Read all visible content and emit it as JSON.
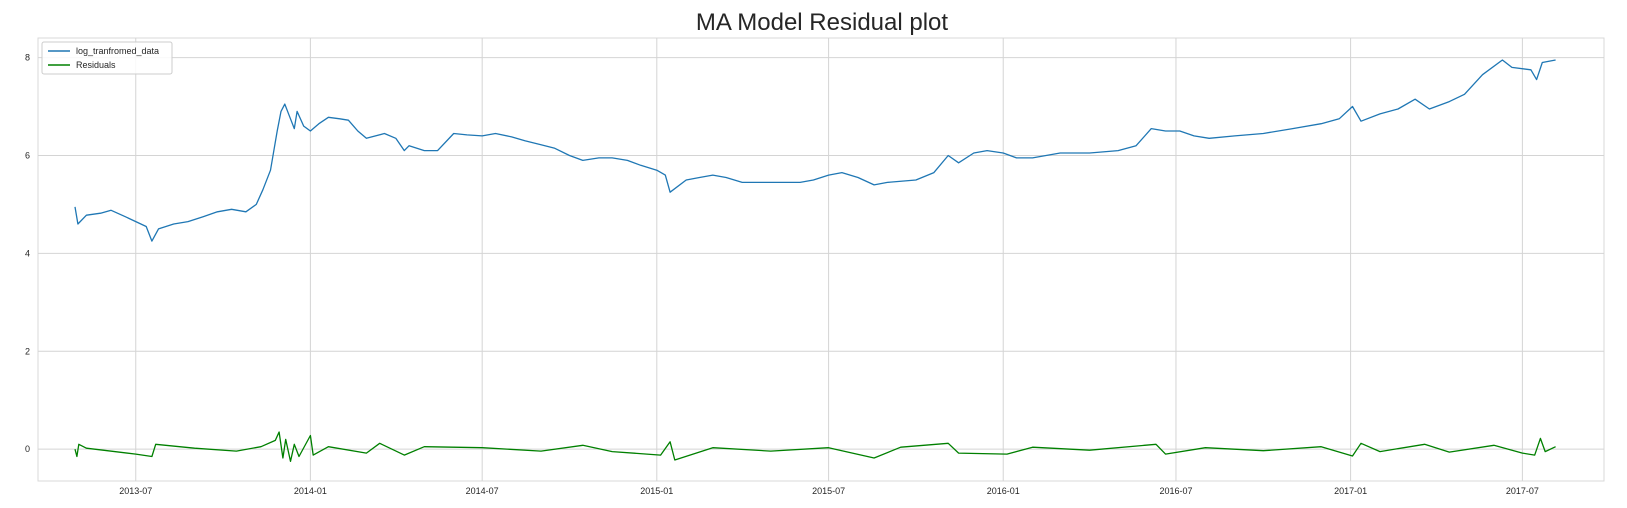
{
  "chart_data": {
    "type": "line",
    "title": "MA Model Residual plot",
    "xlabel": "",
    "ylabel": "",
    "x_range": [
      "2013-03-20",
      "2017-09-25"
    ],
    "ylim": [
      -0.65,
      8.4
    ],
    "x_ticks": [
      "2013-07",
      "2014-01",
      "2014-07",
      "2015-01",
      "2015-07",
      "2016-01",
      "2016-07",
      "2017-01",
      "2017-07"
    ],
    "y_ticks": [
      0,
      2,
      4,
      6,
      8
    ],
    "grid": true,
    "legend_position": "top-left",
    "series": [
      {
        "name": "log_tranfromed_data",
        "color": "#1f77b4",
        "points": [
          [
            "2013-04-28",
            4.95
          ],
          [
            "2013-05-01",
            4.6
          ],
          [
            "2013-05-10",
            4.78
          ],
          [
            "2013-05-25",
            4.82
          ],
          [
            "2013-06-05",
            4.88
          ],
          [
            "2013-06-20",
            4.75
          ],
          [
            "2013-07-01",
            4.65
          ],
          [
            "2013-07-12",
            4.55
          ],
          [
            "2013-07-18",
            4.25
          ],
          [
            "2013-07-25",
            4.5
          ],
          [
            "2013-08-10",
            4.6
          ],
          [
            "2013-08-25",
            4.65
          ],
          [
            "2013-09-10",
            4.75
          ],
          [
            "2013-09-25",
            4.85
          ],
          [
            "2013-10-10",
            4.9
          ],
          [
            "2013-10-25",
            4.85
          ],
          [
            "2013-11-05",
            5.0
          ],
          [
            "2013-11-12",
            5.3
          ],
          [
            "2013-11-20",
            5.7
          ],
          [
            "2013-11-27",
            6.5
          ],
          [
            "2013-12-01",
            6.9
          ],
          [
            "2013-12-05",
            7.05
          ],
          [
            "2013-12-10",
            6.8
          ],
          [
            "2013-12-15",
            6.55
          ],
          [
            "2013-12-18",
            6.9
          ],
          [
            "2013-12-25",
            6.6
          ],
          [
            "2014-01-01",
            6.5
          ],
          [
            "2014-01-10",
            6.65
          ],
          [
            "2014-01-20",
            6.78
          ],
          [
            "2014-02-01",
            6.75
          ],
          [
            "2014-02-10",
            6.72
          ],
          [
            "2014-02-20",
            6.5
          ],
          [
            "2014-03-01",
            6.35
          ],
          [
            "2014-03-20",
            6.45
          ],
          [
            "2014-04-01",
            6.35
          ],
          [
            "2014-04-10",
            6.1
          ],
          [
            "2014-04-15",
            6.2
          ],
          [
            "2014-05-01",
            6.1
          ],
          [
            "2014-05-15",
            6.1
          ],
          [
            "2014-06-01",
            6.45
          ],
          [
            "2014-06-15",
            6.42
          ],
          [
            "2014-07-01",
            6.4
          ],
          [
            "2014-07-15",
            6.45
          ],
          [
            "2014-08-01",
            6.38
          ],
          [
            "2014-08-15",
            6.3
          ],
          [
            "2014-09-01",
            6.22
          ],
          [
            "2014-09-15",
            6.15
          ],
          [
            "2014-10-01",
            6.0
          ],
          [
            "2014-10-15",
            5.9
          ],
          [
            "2014-11-01",
            5.95
          ],
          [
            "2014-11-15",
            5.95
          ],
          [
            "2014-12-01",
            5.9
          ],
          [
            "2014-12-15",
            5.8
          ],
          [
            "2015-01-01",
            5.7
          ],
          [
            "2015-01-10",
            5.6
          ],
          [
            "2015-01-15",
            5.25
          ],
          [
            "2015-02-01",
            5.5
          ],
          [
            "2015-02-15",
            5.55
          ],
          [
            "2015-03-01",
            5.6
          ],
          [
            "2015-03-15",
            5.55
          ],
          [
            "2015-04-01",
            5.45
          ],
          [
            "2015-05-01",
            5.45
          ],
          [
            "2015-06-01",
            5.45
          ],
          [
            "2015-06-15",
            5.5
          ],
          [
            "2015-07-01",
            5.6
          ],
          [
            "2015-07-15",
            5.65
          ],
          [
            "2015-08-01",
            5.55
          ],
          [
            "2015-08-18",
            5.4
          ],
          [
            "2015-09-01",
            5.45
          ],
          [
            "2015-10-01",
            5.5
          ],
          [
            "2015-10-20",
            5.65
          ],
          [
            "2015-11-04",
            6.0
          ],
          [
            "2015-11-15",
            5.85
          ],
          [
            "2015-12-01",
            6.05
          ],
          [
            "2015-12-15",
            6.1
          ],
          [
            "2016-01-01",
            6.05
          ],
          [
            "2016-01-15",
            5.95
          ],
          [
            "2016-02-01",
            5.95
          ],
          [
            "2016-03-01",
            6.05
          ],
          [
            "2016-04-01",
            6.05
          ],
          [
            "2016-05-01",
            6.1
          ],
          [
            "2016-05-20",
            6.2
          ],
          [
            "2016-06-05",
            6.55
          ],
          [
            "2016-06-20",
            6.5
          ],
          [
            "2016-07-05",
            6.5
          ],
          [
            "2016-07-20",
            6.4
          ],
          [
            "2016-08-05",
            6.35
          ],
          [
            "2016-09-01",
            6.4
          ],
          [
            "2016-10-01",
            6.45
          ],
          [
            "2016-11-01",
            6.55
          ],
          [
            "2016-12-01",
            6.65
          ],
          [
            "2016-12-20",
            6.75
          ],
          [
            "2017-01-03",
            7.0
          ],
          [
            "2017-01-12",
            6.7
          ],
          [
            "2017-02-01",
            6.85
          ],
          [
            "2017-02-20",
            6.95
          ],
          [
            "2017-03-10",
            7.15
          ],
          [
            "2017-03-25",
            6.95
          ],
          [
            "2017-04-15",
            7.1
          ],
          [
            "2017-05-01",
            7.25
          ],
          [
            "2017-05-20",
            7.65
          ],
          [
            "2017-06-10",
            7.95
          ],
          [
            "2017-06-20",
            7.8
          ],
          [
            "2017-07-10",
            7.75
          ],
          [
            "2017-07-16",
            7.55
          ],
          [
            "2017-07-22",
            7.9
          ],
          [
            "2017-08-05",
            7.95
          ]
        ]
      },
      {
        "name": "Residuals",
        "color": "#008000",
        "points": [
          [
            "2013-04-28",
            0.0
          ],
          [
            "2013-04-30",
            -0.15
          ],
          [
            "2013-05-02",
            0.1
          ],
          [
            "2013-05-10",
            0.02
          ],
          [
            "2013-06-01",
            -0.03
          ],
          [
            "2013-07-01",
            -0.1
          ],
          [
            "2013-07-18",
            -0.15
          ],
          [
            "2013-07-22",
            0.1
          ],
          [
            "2013-09-01",
            0.02
          ],
          [
            "2013-10-15",
            -0.04
          ],
          [
            "2013-11-10",
            0.05
          ],
          [
            "2013-11-25",
            0.18
          ],
          [
            "2013-11-29",
            0.35
          ],
          [
            "2013-12-03",
            -0.18
          ],
          [
            "2013-12-06",
            0.2
          ],
          [
            "2013-12-11",
            -0.25
          ],
          [
            "2013-12-15",
            0.1
          ],
          [
            "2013-12-20",
            -0.15
          ],
          [
            "2014-01-01",
            0.28
          ],
          [
            "2014-01-04",
            -0.12
          ],
          [
            "2014-01-20",
            0.05
          ],
          [
            "2014-03-01",
            -0.08
          ],
          [
            "2014-03-15",
            0.12
          ],
          [
            "2014-04-10",
            -0.12
          ],
          [
            "2014-05-01",
            0.05
          ],
          [
            "2014-07-01",
            0.03
          ],
          [
            "2014-09-01",
            -0.04
          ],
          [
            "2014-10-15",
            0.08
          ],
          [
            "2014-11-15",
            -0.05
          ],
          [
            "2015-01-05",
            -0.12
          ],
          [
            "2015-01-15",
            0.15
          ],
          [
            "2015-01-20",
            -0.22
          ],
          [
            "2015-03-01",
            0.03
          ],
          [
            "2015-05-01",
            -0.04
          ],
          [
            "2015-07-01",
            0.03
          ],
          [
            "2015-08-18",
            -0.18
          ],
          [
            "2015-09-15",
            0.04
          ],
          [
            "2015-11-04",
            0.12
          ],
          [
            "2015-11-15",
            -0.08
          ],
          [
            "2016-01-05",
            -0.1
          ],
          [
            "2016-02-01",
            0.04
          ],
          [
            "2016-04-01",
            -0.02
          ],
          [
            "2016-06-10",
            0.1
          ],
          [
            "2016-06-20",
            -0.1
          ],
          [
            "2016-08-01",
            0.03
          ],
          [
            "2016-10-01",
            -0.03
          ],
          [
            "2016-12-01",
            0.05
          ],
          [
            "2017-01-03",
            -0.14
          ],
          [
            "2017-01-12",
            0.12
          ],
          [
            "2017-02-01",
            -0.05
          ],
          [
            "2017-03-20",
            0.1
          ],
          [
            "2017-04-15",
            -0.06
          ],
          [
            "2017-06-01",
            0.08
          ],
          [
            "2017-07-01",
            -0.08
          ],
          [
            "2017-07-14",
            -0.12
          ],
          [
            "2017-07-20",
            0.22
          ],
          [
            "2017-07-25",
            -0.05
          ],
          [
            "2017-08-05",
            0.05
          ]
        ]
      }
    ]
  }
}
